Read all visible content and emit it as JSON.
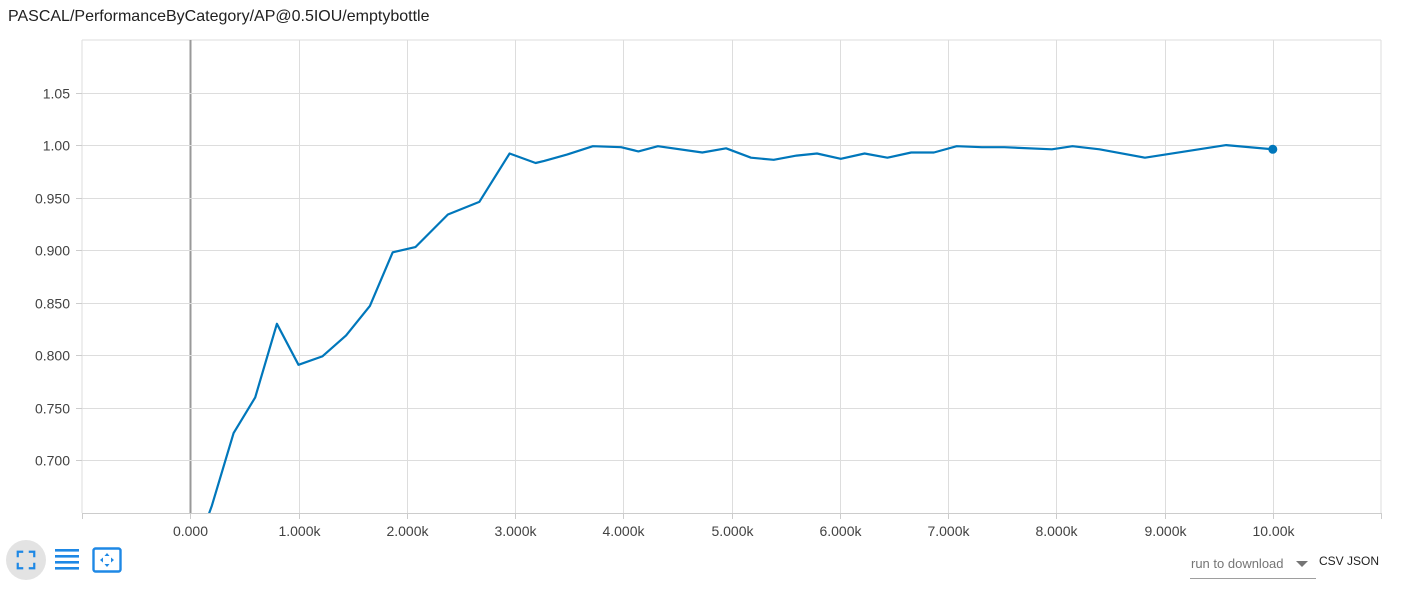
{
  "title": "PASCAL/PerformanceByCategory/AP@0.5IOU/emptybottle",
  "chart_data": {
    "type": "line",
    "title": "PASCAL/PerformanceByCategory/AP@0.5IOU/emptybottle",
    "xlabel": "",
    "ylabel": "",
    "x_ticks": [
      {
        "v": 0,
        "label": "0.000"
      },
      {
        "v": 1000,
        "label": "1.000k"
      },
      {
        "v": 2000,
        "label": "2.000k"
      },
      {
        "v": 3000,
        "label": "3.000k"
      },
      {
        "v": 4000,
        "label": "4.000k"
      },
      {
        "v": 5000,
        "label": "5.000k"
      },
      {
        "v": 6000,
        "label": "6.000k"
      },
      {
        "v": 7000,
        "label": "7.000k"
      },
      {
        "v": 8000,
        "label": "8.000k"
      },
      {
        "v": 9000,
        "label": "9.000k"
      },
      {
        "v": 10000,
        "label": "10.00k"
      }
    ],
    "y_ticks": [
      {
        "v": 0.7,
        "label": "0.700"
      },
      {
        "v": 0.75,
        "label": "0.750"
      },
      {
        "v": 0.8,
        "label": "0.800"
      },
      {
        "v": 0.85,
        "label": "0.850"
      },
      {
        "v": 0.9,
        "label": "0.900"
      },
      {
        "v": 0.95,
        "label": "0.950"
      },
      {
        "v": 1.0,
        "label": "1.00"
      },
      {
        "v": 1.05,
        "label": "1.05"
      }
    ],
    "xlim": [
      -1000,
      11000
    ],
    "ylim": [
      0.65,
      1.1
    ],
    "grid": true,
    "series": [
      {
        "color": "#0077bb",
        "x": [
          0,
          200,
          400,
          600,
          800,
          1000,
          1220,
          1440,
          1660,
          1870,
          2080,
          2380,
          2670,
          2950,
          3190,
          3270,
          3480,
          3720,
          3980,
          4140,
          4320,
          4730,
          4950,
          5180,
          5390,
          5600,
          5790,
          6010,
          6230,
          6440,
          6660,
          6870,
          7080,
          7310,
          7520,
          7960,
          8150,
          8400,
          8820,
          9570,
          10000
        ],
        "y": [
          0.6,
          0.657,
          0.726,
          0.76,
          0.83,
          0.791,
          0.799,
          0.819,
          0.847,
          0.898,
          0.903,
          0.934,
          0.946,
          0.992,
          0.983,
          0.985,
          0.991,
          0.999,
          0.998,
          0.994,
          0.999,
          0.993,
          0.997,
          0.988,
          0.986,
          0.99,
          0.992,
          0.987,
          0.992,
          0.988,
          0.993,
          0.993,
          0.999,
          0.998,
          0.998,
          0.996,
          0.999,
          0.996,
          0.988,
          1.0,
          0.996
        ]
      }
    ]
  },
  "toolbar": {
    "expand_icon": "expand-icon",
    "lines_icon": "data-lines-icon",
    "fit_icon": "fit-domain-icon",
    "accent_color": "#1e88e5"
  },
  "download": {
    "run_placeholder": "run to download",
    "csv_label": "CSV",
    "json_label": "JSON"
  }
}
